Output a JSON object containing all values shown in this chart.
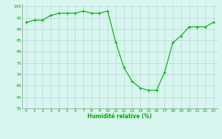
{
  "x": [
    0,
    1,
    2,
    3,
    4,
    5,
    6,
    7,
    8,
    9,
    10,
    11,
    12,
    13,
    14,
    15,
    16,
    17,
    18,
    19,
    20,
    21,
    22,
    23
  ],
  "y": [
    93,
    94,
    94,
    96,
    97,
    97,
    97,
    98,
    97,
    97,
    98,
    84,
    73,
    67,
    64,
    63,
    63,
    71,
    84,
    87,
    91,
    91,
    91,
    93
  ],
  "line_color": "#00bb00",
  "marker": "+",
  "marker_size": 3,
  "bg_color": "#d8f5f0",
  "grid_color": "#b0d8d0",
  "xlabel": "Humidité relative (%)",
  "xlabel_color": "#00aa00",
  "tick_color": "#00aa00",
  "ylim": [
    55,
    101
  ],
  "yticks": [
    55,
    60,
    65,
    70,
    75,
    80,
    85,
    90,
    95,
    100
  ],
  "xlim": [
    -0.5,
    23.5
  ],
  "xticks": [
    0,
    1,
    2,
    3,
    4,
    5,
    6,
    7,
    8,
    9,
    10,
    11,
    12,
    13,
    14,
    15,
    16,
    17,
    18,
    19,
    20,
    21,
    22,
    23
  ],
  "xtick_labels": [
    "0",
    "1",
    "2",
    "3",
    "4",
    "5",
    "6",
    "7",
    "8",
    "9",
    "10",
    "11",
    "12",
    "13",
    "14",
    "15",
    "16",
    "17",
    "18",
    "19",
    "20",
    "21",
    "22",
    "23"
  ]
}
